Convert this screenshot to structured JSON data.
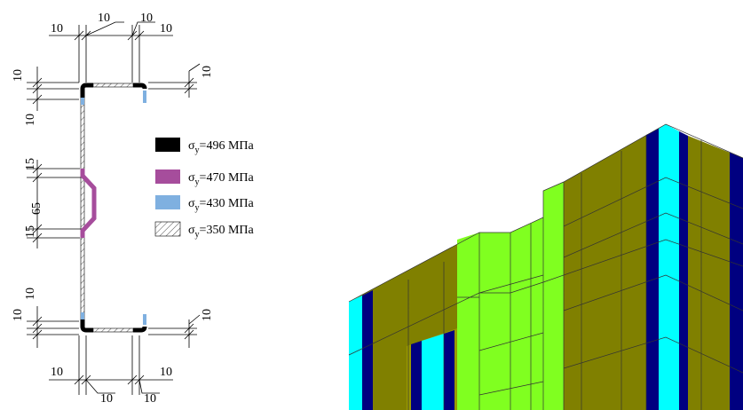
{
  "dimension_labels": [
    "10",
    "10",
    "10",
    "10",
    "10",
    "10",
    "10",
    "15",
    "65",
    "15",
    "10",
    "10",
    "10",
    "10",
    "10",
    "10",
    "10"
  ],
  "legend": [
    {
      "symbol": "σ",
      "subscript": "y",
      "text": "=496 МПа"
    },
    {
      "symbol": "σ",
      "subscript": "y",
      "text": "=470 МПа"
    },
    {
      "symbol": "σ",
      "subscript": "y",
      "text": "=430 МПа"
    },
    {
      "symbol": "σ",
      "subscript": "y",
      "text": "=350 МПа"
    }
  ]
}
